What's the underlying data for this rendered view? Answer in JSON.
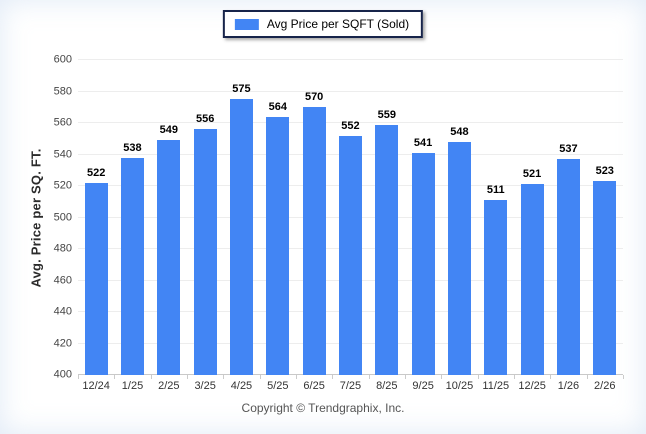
{
  "legend": {
    "label": "Avg Price per SQFT (Sold)"
  },
  "y_axis": {
    "title": "Avg. Price per SQ. FT."
  },
  "footer": {
    "copyright": "Copyright © Trendgraphix, Inc."
  },
  "colors": {
    "bar": "#4285f4",
    "gridline": "#ededed",
    "baseline": "#c9c9c9"
  },
  "chart_data": {
    "type": "bar",
    "title": "",
    "xlabel": "",
    "ylabel": "Avg. Price per SQ. FT.",
    "categories": [
      "12/24",
      "1/25",
      "2/25",
      "3/25",
      "4/25",
      "5/25",
      "6/25",
      "7/25",
      "8/25",
      "9/25",
      "10/25",
      "11/25",
      "12/25",
      "1/26",
      "2/26"
    ],
    "values": [
      522,
      538,
      549,
      556,
      575,
      564,
      570,
      552,
      559,
      541,
      548,
      511,
      521,
      537,
      523
    ],
    "ylim": [
      400,
      600
    ],
    "ytick_step": 20,
    "grid": true,
    "value_labels": true,
    "legend_entries": [
      "Avg Price per SQFT (Sold)"
    ],
    "legend_position": "top",
    "bar_color": "#4285f4"
  }
}
